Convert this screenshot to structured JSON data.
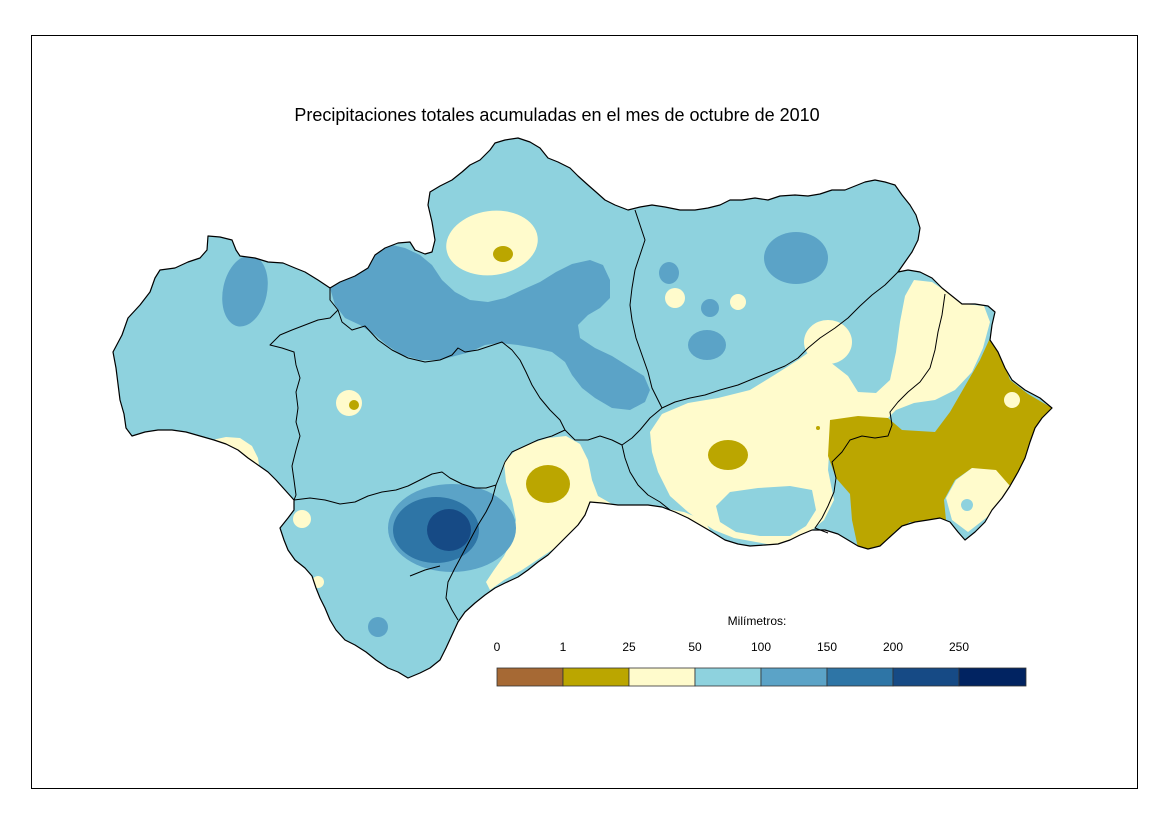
{
  "title": "Precipitaciones totales acumuladas en el mes de octubre de 2010",
  "legend": {
    "title": "Milímetros:",
    "ticks": [
      "0",
      "1",
      "25",
      "50",
      "100",
      "150",
      "200",
      "250"
    ],
    "bin_colors": [
      "#a66934",
      "#bba600",
      "#fffbcc",
      "#8ed2de",
      "#5ba3c7",
      "#2e75a6",
      "#164a85",
      "#012361"
    ]
  }
}
